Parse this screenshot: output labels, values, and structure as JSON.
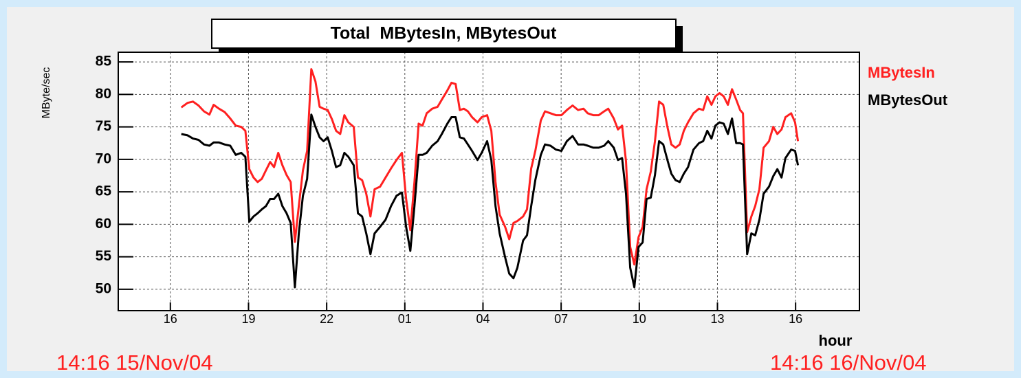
{
  "chart_data": {
    "type": "line",
    "title": "Total  MBytesIn, MBytesOut",
    "ylabel": "MByte/sec",
    "xlabel": "hour",
    "annotations": [
      "14:16 15/Nov/04",
      "14:16 16/Nov/04"
    ],
    "legend": "right",
    "grid": true,
    "xlim": [
      14.0,
      42.45
    ],
    "ylim": [
      46.7,
      86.5
    ],
    "xticks": [
      16,
      19,
      22,
      {
        "value": 25,
        "label": "01"
      },
      {
        "value": 28,
        "label": "04"
      },
      {
        "value": 31,
        "label": "07"
      },
      {
        "value": 34,
        "label": "10"
      },
      {
        "value": 37,
        "label": "13"
      },
      {
        "value": 40,
        "label": "16"
      }
    ],
    "yticks": [
      50,
      55,
      60,
      65,
      70,
      75,
      80,
      85
    ],
    "x": [
      16.42,
      16.66,
      16.87,
      17.08,
      17.29,
      17.5,
      17.66,
      17.87,
      18.08,
      18.3,
      18.51,
      18.72,
      18.88,
      19.03,
      19.19,
      19.35,
      19.51,
      19.67,
      19.83,
      19.98,
      20.14,
      20.3,
      20.46,
      20.62,
      20.78,
      20.93,
      21.09,
      21.25,
      21.41,
      21.57,
      21.73,
      21.88,
      22.04,
      22.2,
      22.36,
      22.52,
      22.68,
      22.83,
      23.04,
      23.2,
      23.36,
      23.52,
      23.68,
      23.84,
      24.05,
      24.26,
      24.47,
      24.68,
      24.89,
      25.05,
      25.21,
      25.37,
      25.53,
      25.68,
      25.84,
      26.05,
      26.26,
      26.42,
      26.63,
      26.79,
      26.95,
      27.11,
      27.27,
      27.42,
      27.58,
      27.79,
      27.95,
      28.16,
      28.32,
      28.48,
      28.64,
      28.85,
      29.01,
      29.17,
      29.32,
      29.54,
      29.69,
      29.85,
      30.01,
      30.22,
      30.38,
      30.59,
      30.8,
      31.01,
      31.22,
      31.44,
      31.65,
      31.86,
      32.02,
      32.23,
      32.44,
      32.65,
      32.81,
      33.02,
      33.18,
      33.34,
      33.49,
      33.65,
      33.81,
      33.97,
      34.13,
      34.28,
      34.44,
      34.6,
      34.76,
      34.92,
      35.08,
      35.23,
      35.39,
      35.55,
      35.71,
      35.87,
      36.08,
      36.29,
      36.45,
      36.61,
      36.77,
      36.92,
      37.08,
      37.24,
      37.4,
      37.56,
      37.72,
      37.87,
      37.98,
      38.14,
      38.3,
      38.45,
      38.61,
      38.77,
      38.98,
      39.14,
      39.3,
      39.46,
      39.61,
      39.83,
      39.98,
      40.09
    ],
    "series": [
      {
        "name": "MBytesIn",
        "color": "#ff2020",
        "values": [
          78.0,
          78.7,
          78.9,
          78.3,
          77.4,
          76.9,
          78.4,
          77.8,
          77.3,
          76.3,
          75.2,
          75.0,
          74.4,
          68.5,
          67.2,
          66.5,
          67.0,
          68.3,
          69.6,
          68.8,
          71.0,
          69.1,
          67.6,
          66.5,
          57.3,
          62.8,
          68.3,
          71.3,
          83.9,
          82.0,
          78.1,
          77.8,
          77.6,
          76.2,
          74.4,
          73.9,
          76.8,
          75.7,
          75.0,
          67.2,
          66.8,
          64.7,
          61.2,
          65.4,
          65.8,
          67.2,
          68.6,
          69.9,
          71.0,
          63.9,
          59.1,
          66.5,
          75.5,
          75.2,
          77.1,
          77.8,
          78.1,
          79.2,
          80.6,
          81.8,
          81.6,
          77.6,
          77.8,
          77.4,
          76.5,
          75.7,
          76.5,
          76.8,
          74.4,
          66.5,
          61.5,
          59.6,
          57.7,
          60.2,
          60.5,
          61.2,
          62.3,
          68.6,
          71.3,
          76.0,
          77.4,
          77.1,
          76.8,
          76.8,
          77.6,
          78.3,
          77.6,
          77.8,
          77.1,
          76.8,
          76.8,
          77.4,
          77.8,
          76.3,
          74.6,
          75.2,
          69.7,
          56.5,
          53.8,
          58.0,
          59.6,
          65.4,
          68.1,
          72.8,
          78.9,
          78.4,
          75.0,
          72.3,
          71.8,
          72.3,
          74.4,
          75.7,
          77.1,
          77.8,
          77.6,
          79.7,
          78.4,
          79.7,
          80.2,
          79.7,
          78.4,
          80.8,
          79.2,
          77.6,
          77.1,
          58.8,
          61.2,
          62.8,
          65.4,
          71.8,
          72.8,
          75.0,
          73.9,
          74.6,
          76.5,
          77.1,
          75.7,
          72.8
        ]
      },
      {
        "name": "MBytesOut",
        "color": "#000000",
        "values": [
          73.9,
          73.7,
          73.2,
          73.0,
          72.3,
          72.1,
          72.6,
          72.6,
          72.3,
          72.1,
          70.7,
          71.0,
          70.4,
          60.4,
          61.2,
          61.7,
          62.3,
          62.8,
          63.9,
          63.9,
          64.7,
          62.8,
          61.7,
          60.2,
          50.3,
          58.6,
          64.4,
          67.0,
          76.9,
          75.0,
          73.4,
          72.8,
          73.4,
          71.3,
          68.8,
          69.1,
          71.0,
          70.4,
          69.1,
          61.7,
          61.2,
          58.6,
          55.4,
          58.6,
          59.6,
          60.7,
          62.8,
          64.4,
          64.9,
          59.6,
          55.9,
          62.8,
          70.7,
          70.7,
          71.0,
          72.1,
          72.8,
          73.9,
          75.5,
          76.5,
          76.5,
          73.4,
          73.2,
          72.3,
          71.3,
          69.9,
          71.0,
          72.8,
          69.9,
          62.8,
          58.6,
          54.9,
          52.4,
          51.7,
          53.3,
          57.5,
          58.3,
          62.8,
          66.8,
          70.7,
          72.3,
          72.1,
          71.5,
          71.3,
          72.8,
          73.6,
          72.3,
          72.3,
          72.1,
          71.8,
          71.8,
          72.1,
          72.8,
          71.8,
          69.9,
          70.2,
          64.7,
          53.3,
          50.3,
          56.5,
          57.2,
          63.9,
          64.1,
          67.6,
          72.8,
          72.3,
          69.9,
          67.8,
          66.8,
          66.5,
          67.8,
          68.8,
          71.5,
          72.5,
          72.8,
          74.4,
          73.2,
          75.2,
          75.7,
          75.5,
          73.9,
          76.3,
          72.5,
          72.5,
          72.3,
          55.4,
          58.6,
          58.3,
          60.7,
          64.7,
          65.8,
          67.4,
          68.5,
          67.2,
          70.2,
          71.5,
          71.3,
          69.1
        ]
      }
    ]
  }
}
